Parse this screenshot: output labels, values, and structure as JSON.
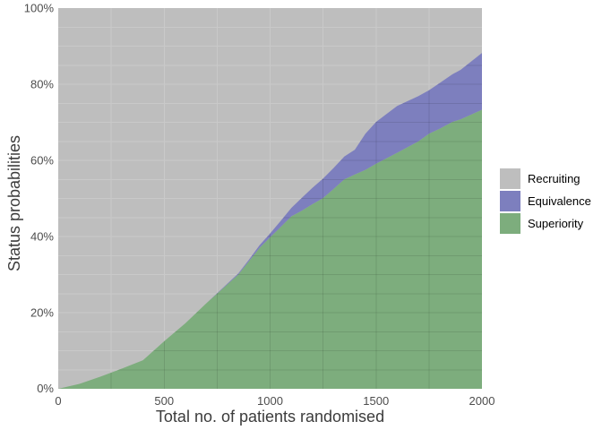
{
  "chart_data": {
    "type": "area",
    "stacked": true,
    "title": "",
    "xlabel": "Total no. of patients randomised",
    "ylabel": "Status probabilities",
    "xlim": [
      0,
      2000
    ],
    "ylim": [
      0,
      100
    ],
    "x_ticks": [
      0,
      500,
      1000,
      1500,
      2000
    ],
    "x_tick_labels": [
      "0",
      "500",
      "1000",
      "1500",
      "2000"
    ],
    "y_ticks": [
      0,
      20,
      40,
      60,
      80,
      100
    ],
    "y_tick_labels": [
      "0%",
      "20%",
      "40%",
      "60%",
      "80%",
      "100%"
    ],
    "grid": {
      "x_minor_step": 250,
      "y_minor_step": 5,
      "on": true
    },
    "x": [
      0,
      100,
      200,
      300,
      400,
      500,
      600,
      700,
      800,
      850,
      900,
      950,
      1000,
      1050,
      1100,
      1150,
      1200,
      1250,
      1300,
      1350,
      1400,
      1450,
      1500,
      1600,
      1700,
      1750,
      1800,
      1860,
      1900,
      2000
    ],
    "series": [
      {
        "name": "Superiority",
        "color": "#7dad7d",
        "values": [
          0,
          1.3,
          3.2,
          5.3,
          7.5,
          12.5,
          17.2,
          22.5,
          27.5,
          30,
          33.5,
          37,
          39.8,
          42.5,
          45.3,
          46.8,
          48.5,
          50.1,
          52.5,
          55,
          56.3,
          57.5,
          59.1,
          62,
          65,
          67,
          68.3,
          70.1,
          70.8,
          73.3
        ]
      },
      {
        "name": "Equivalence",
        "color": "#7d7fbe",
        "values": [
          0,
          0,
          0,
          0,
          0,
          0,
          0,
          0,
          0.2,
          0.3,
          0.4,
          0.7,
          1,
          1.6,
          2.2,
          3.4,
          4.3,
          5.1,
          5.5,
          6,
          6.5,
          9.5,
          11,
          12.3,
          11.9,
          11.4,
          12,
          12.5,
          13,
          14.9
        ]
      },
      {
        "name": "Recruiting",
        "color": "#bebebe",
        "values": [
          100,
          98.7,
          96.8,
          94.7,
          92.5,
          87.5,
          82.8,
          77.5,
          72.3,
          69.7,
          66.1,
          62.3,
          59.2,
          55.9,
          52.5,
          49.8,
          47.2,
          44.8,
          42,
          39,
          37.2,
          33,
          29.9,
          25.7,
          23.1,
          21.6,
          19.7,
          17.4,
          16.2,
          11.8
        ]
      }
    ],
    "legend": {
      "position": "right",
      "items": [
        {
          "label": "Recruiting",
          "color": "#bebebe"
        },
        {
          "label": "Equivalence",
          "color": "#7d7fbe"
        },
        {
          "label": "Superiority",
          "color": "#7dad7d"
        }
      ]
    },
    "panel": {
      "background": "#bebebe",
      "gridline_color": "#c9c9c9",
      "overlay_gridline_color": "rgba(0,0,0,0.10)"
    }
  }
}
